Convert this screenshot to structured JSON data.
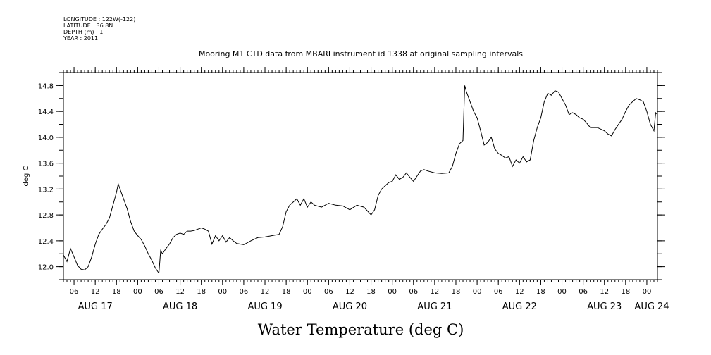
{
  "meta": {
    "longitude": "LONGITUDE : 122W(-122)",
    "latitude": "LATITUDE : 36.8N",
    "depth": "DEPTH (m) : 1",
    "year": "YEAR : 2011"
  },
  "chart_data": {
    "type": "line",
    "title": "Mooring M1 CTD data from MBARI instrument id 1338 at original sampling intervals",
    "ylabel": "deg C",
    "xlabel": "Water Temperature (deg C)",
    "ylim": [
      11.8,
      15.0
    ],
    "yticks": [
      "12.0",
      "12.4",
      "12.8",
      "13.2",
      "13.6",
      "14.0",
      "14.4",
      "14.8"
    ],
    "xlim": [
      "2011-08-17T03:00",
      "2011-08-24T03:00"
    ],
    "hour_ticks": [
      "06",
      "12",
      "18",
      "00",
      "06",
      "12",
      "18",
      "00",
      "06",
      "12",
      "18",
      "00",
      "06",
      "12",
      "18",
      "00",
      "06",
      "12",
      "18",
      "00",
      "06",
      "12",
      "18",
      "00",
      "06",
      "12",
      "18",
      "00"
    ],
    "day_labels": [
      "AUG 17",
      "AUG 18",
      "AUG 19",
      "AUG 20",
      "AUG 21",
      "AUG 22",
      "AUG 23",
      "AUG 24"
    ],
    "series": [
      {
        "color": "#000000",
        "points": [
          [
            "2011-08-17T03:00",
            12.18
          ],
          [
            "2011-08-17T04:00",
            12.08
          ],
          [
            "2011-08-17T05:00",
            12.28
          ],
          [
            "2011-08-17T06:00",
            12.15
          ],
          [
            "2011-08-17T07:00",
            12.02
          ],
          [
            "2011-08-17T08:00",
            11.96
          ],
          [
            "2011-08-17T09:00",
            11.95
          ],
          [
            "2011-08-17T10:00",
            12.0
          ],
          [
            "2011-08-17T11:00",
            12.15
          ],
          [
            "2011-08-17T12:00",
            12.35
          ],
          [
            "2011-08-17T13:00",
            12.5
          ],
          [
            "2011-08-17T14:00",
            12.58
          ],
          [
            "2011-08-17T15:00",
            12.65
          ],
          [
            "2011-08-17T16:00",
            12.75
          ],
          [
            "2011-08-17T17:00",
            12.95
          ],
          [
            "2011-08-17T18:00",
            13.15
          ],
          [
            "2011-08-17T18:30",
            13.28
          ],
          [
            "2011-08-17T19:00",
            13.2
          ],
          [
            "2011-08-17T20:00",
            13.05
          ],
          [
            "2011-08-17T21:00",
            12.9
          ],
          [
            "2011-08-17T22:00",
            12.7
          ],
          [
            "2011-08-17T23:00",
            12.55
          ],
          [
            "2011-08-18T00:00",
            12.48
          ],
          [
            "2011-08-18T01:00",
            12.42
          ],
          [
            "2011-08-18T02:00",
            12.32
          ],
          [
            "2011-08-18T03:00",
            12.2
          ],
          [
            "2011-08-18T04:00",
            12.1
          ],
          [
            "2011-08-18T05:00",
            11.98
          ],
          [
            "2011-08-18T06:00",
            11.9
          ],
          [
            "2011-08-18T06:30",
            12.25
          ],
          [
            "2011-08-18T07:00",
            12.2
          ],
          [
            "2011-08-18T08:00",
            12.28
          ],
          [
            "2011-08-18T09:00",
            12.35
          ],
          [
            "2011-08-18T10:00",
            12.45
          ],
          [
            "2011-08-18T11:00",
            12.5
          ],
          [
            "2011-08-18T12:00",
            12.52
          ],
          [
            "2011-08-18T13:00",
            12.5
          ],
          [
            "2011-08-18T14:00",
            12.55
          ],
          [
            "2011-08-18T15:00",
            12.55
          ],
          [
            "2011-08-18T16:00",
            12.56
          ],
          [
            "2011-08-18T17:00",
            12.58
          ],
          [
            "2011-08-18T18:00",
            12.6
          ],
          [
            "2011-08-18T19:00",
            12.58
          ],
          [
            "2011-08-18T20:00",
            12.55
          ],
          [
            "2011-08-18T21:00",
            12.35
          ],
          [
            "2011-08-18T22:00",
            12.48
          ],
          [
            "2011-08-18T23:00",
            12.4
          ],
          [
            "2011-08-19T00:00",
            12.48
          ],
          [
            "2011-08-19T01:00",
            12.38
          ],
          [
            "2011-08-19T02:00",
            12.45
          ],
          [
            "2011-08-19T03:00",
            12.4
          ],
          [
            "2011-08-19T04:00",
            12.36
          ],
          [
            "2011-08-19T05:00",
            12.35
          ],
          [
            "2011-08-19T06:00",
            12.34
          ],
          [
            "2011-08-19T08:00",
            12.4
          ],
          [
            "2011-08-19T10:00",
            12.45
          ],
          [
            "2011-08-19T12:00",
            12.46
          ],
          [
            "2011-08-19T14:00",
            12.48
          ],
          [
            "2011-08-19T16:00",
            12.5
          ],
          [
            "2011-08-19T17:00",
            12.62
          ],
          [
            "2011-08-19T18:00",
            12.85
          ],
          [
            "2011-08-19T19:00",
            12.95
          ],
          [
            "2011-08-19T20:00",
            13.0
          ],
          [
            "2011-08-19T21:00",
            13.05
          ],
          [
            "2011-08-19T22:00",
            12.95
          ],
          [
            "2011-08-19T23:00",
            13.05
          ],
          [
            "2011-08-20T00:00",
            12.92
          ],
          [
            "2011-08-20T01:00",
            13.0
          ],
          [
            "2011-08-20T02:00",
            12.95
          ],
          [
            "2011-08-20T04:00",
            12.92
          ],
          [
            "2011-08-20T06:00",
            12.98
          ],
          [
            "2011-08-20T08:00",
            12.95
          ],
          [
            "2011-08-20T10:00",
            12.94
          ],
          [
            "2011-08-20T12:00",
            12.88
          ],
          [
            "2011-08-20T14:00",
            12.95
          ],
          [
            "2011-08-20T16:00",
            12.92
          ],
          [
            "2011-08-20T18:00",
            12.8
          ],
          [
            "2011-08-20T19:00",
            12.88
          ],
          [
            "2011-08-20T20:00",
            13.1
          ],
          [
            "2011-08-20T21:00",
            13.2
          ],
          [
            "2011-08-20T22:00",
            13.25
          ],
          [
            "2011-08-20T23:00",
            13.3
          ],
          [
            "2011-08-21T00:00",
            13.32
          ],
          [
            "2011-08-21T01:00",
            13.42
          ],
          [
            "2011-08-21T02:00",
            13.35
          ],
          [
            "2011-08-21T03:00",
            13.38
          ],
          [
            "2011-08-21T04:00",
            13.45
          ],
          [
            "2011-08-21T05:00",
            13.38
          ],
          [
            "2011-08-21T06:00",
            13.32
          ],
          [
            "2011-08-21T07:00",
            13.4
          ],
          [
            "2011-08-21T08:00",
            13.48
          ],
          [
            "2011-08-21T09:00",
            13.5
          ],
          [
            "2011-08-21T10:00",
            13.48
          ],
          [
            "2011-08-21T12:00",
            13.45
          ],
          [
            "2011-08-21T14:00",
            13.44
          ],
          [
            "2011-08-21T16:00",
            13.45
          ],
          [
            "2011-08-21T17:00",
            13.55
          ],
          [
            "2011-08-21T18:00",
            13.75
          ],
          [
            "2011-08-21T19:00",
            13.9
          ],
          [
            "2011-08-21T20:00",
            13.95
          ],
          [
            "2011-08-21T20:30",
            14.8
          ],
          [
            "2011-08-21T21:00",
            14.7
          ],
          [
            "2011-08-21T22:00",
            14.55
          ],
          [
            "2011-08-21T23:00",
            14.4
          ],
          [
            "2011-08-22T00:00",
            14.3
          ],
          [
            "2011-08-22T01:00",
            14.1
          ],
          [
            "2011-08-22T02:00",
            13.88
          ],
          [
            "2011-08-22T03:00",
            13.92
          ],
          [
            "2011-08-22T04:00",
            14.0
          ],
          [
            "2011-08-22T05:00",
            13.82
          ],
          [
            "2011-08-22T06:00",
            13.75
          ],
          [
            "2011-08-22T07:00",
            13.72
          ],
          [
            "2011-08-22T08:00",
            13.68
          ],
          [
            "2011-08-22T09:00",
            13.7
          ],
          [
            "2011-08-22T10:00",
            13.55
          ],
          [
            "2011-08-22T11:00",
            13.65
          ],
          [
            "2011-08-22T12:00",
            13.6
          ],
          [
            "2011-08-22T13:00",
            13.7
          ],
          [
            "2011-08-22T14:00",
            13.62
          ],
          [
            "2011-08-22T15:00",
            13.65
          ],
          [
            "2011-08-22T16:00",
            13.95
          ],
          [
            "2011-08-22T17:00",
            14.15
          ],
          [
            "2011-08-22T18:00",
            14.3
          ],
          [
            "2011-08-22T19:00",
            14.55
          ],
          [
            "2011-08-22T20:00",
            14.68
          ],
          [
            "2011-08-22T21:00",
            14.65
          ],
          [
            "2011-08-22T22:00",
            14.72
          ],
          [
            "2011-08-22T23:00",
            14.7
          ],
          [
            "2011-08-23T00:00",
            14.6
          ],
          [
            "2011-08-23T01:00",
            14.5
          ],
          [
            "2011-08-23T02:00",
            14.35
          ],
          [
            "2011-08-23T03:00",
            14.38
          ],
          [
            "2011-08-23T04:00",
            14.35
          ],
          [
            "2011-08-23T05:00",
            14.3
          ],
          [
            "2011-08-23T06:00",
            14.28
          ],
          [
            "2011-08-23T07:00",
            14.22
          ],
          [
            "2011-08-23T08:00",
            14.15
          ],
          [
            "2011-08-23T10:00",
            14.15
          ],
          [
            "2011-08-23T12:00",
            14.1
          ],
          [
            "2011-08-23T13:00",
            14.05
          ],
          [
            "2011-08-23T14:00",
            14.02
          ],
          [
            "2011-08-23T15:00",
            14.12
          ],
          [
            "2011-08-23T16:00",
            14.2
          ],
          [
            "2011-08-23T17:00",
            14.28
          ],
          [
            "2011-08-23T18:00",
            14.4
          ],
          [
            "2011-08-23T19:00",
            14.5
          ],
          [
            "2011-08-23T20:00",
            14.55
          ],
          [
            "2011-08-23T21:00",
            14.6
          ],
          [
            "2011-08-23T22:00",
            14.58
          ],
          [
            "2011-08-23T23:00",
            14.55
          ],
          [
            "2011-08-24T00:00",
            14.4
          ],
          [
            "2011-08-24T01:00",
            14.2
          ],
          [
            "2011-08-24T02:00",
            14.1
          ],
          [
            "2011-08-24T02:30",
            14.38
          ],
          [
            "2011-08-24T03:00",
            14.35
          ]
        ]
      }
    ]
  }
}
